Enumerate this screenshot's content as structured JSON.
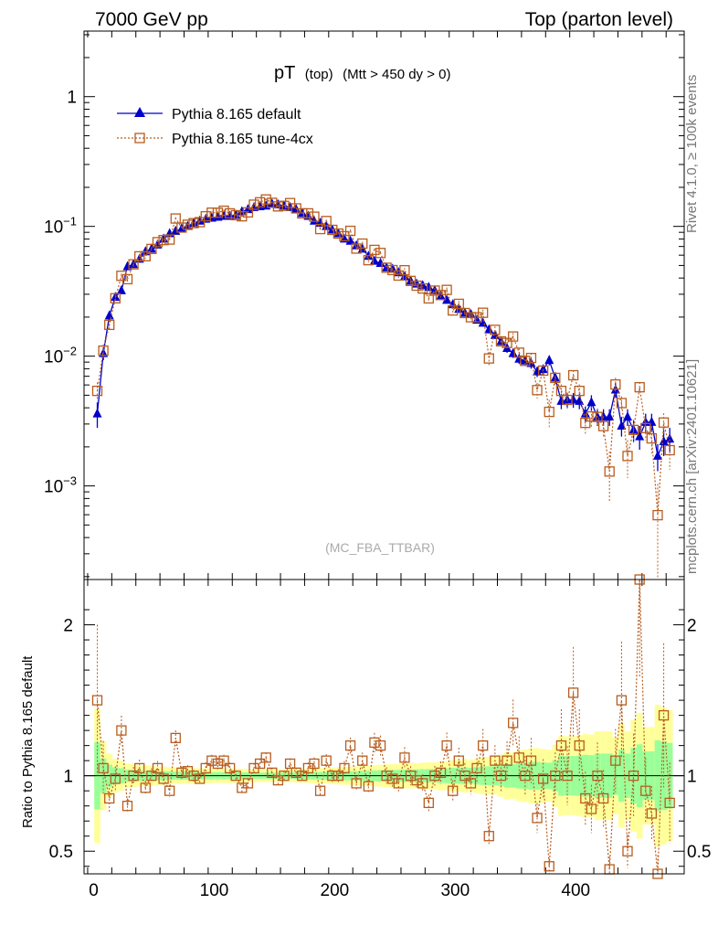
{
  "header": {
    "left": "7000 GeV pp",
    "right": "Top (parton level)"
  },
  "plot_title": {
    "main": "pT",
    "sub1": "(top)",
    "sub2": "(Mtt > 450 dy > 0)"
  },
  "analysis_tag": "(MC_FBA_TTBAR)",
  "side_labels": {
    "rivet": "Rivet 4.1.0, ≥ 100k events",
    "mcplots": "mcplots.cern.ch [arXiv:2401.10621]"
  },
  "legend": [
    {
      "label": "Pythia 8.165 default",
      "color": "#0000cc"
    },
    {
      "label": "Pythia 8.165 tune-4cx",
      "color": "#b85c1e"
    }
  ],
  "upper_ticks": [
    {
      "value": 1,
      "base": "1",
      "exp": ""
    },
    {
      "value": 0.1,
      "base": "10",
      "exp": "−1"
    },
    {
      "value": 0.01,
      "base": "10",
      "exp": "−2"
    },
    {
      "value": 0.001,
      "base": "10",
      "exp": "−3"
    }
  ],
  "ratio_ticks": [
    {
      "value": 2,
      "label": "2"
    },
    {
      "value": 1,
      "label": "1"
    },
    {
      "value": 0.5,
      "label": "0.5"
    }
  ],
  "x_ticks": [
    {
      "value": 0,
      "label": "0"
    },
    {
      "value": 100,
      "label": "100"
    },
    {
      "value": 200,
      "label": "200"
    },
    {
      "value": 300,
      "label": "300"
    },
    {
      "value": 400,
      "label": "400"
    }
  ],
  "ratio_ylabel": "Ratio to Pythia 8.165 default",
  "colors": {
    "default": "#0000cc",
    "tune": "#b85c1e",
    "band_inner": "#99ff99",
    "band_outer": "#ffff99"
  },
  "chart_data": {
    "type": "line",
    "title": "pT (top) (Mtt > 450 dy > 0)",
    "xlabel": "",
    "ylabel": "",
    "xlim": [
      -8,
      490
    ],
    "ylim": [
      0.00019,
      3.2
    ],
    "yscale": "log",
    "ratio_ylim": [
      0.35,
      2.3
    ],
    "x": [
      3,
      8,
      13,
      18,
      23,
      28,
      33,
      38,
      43,
      48,
      53,
      58,
      63,
      68,
      73,
      78,
      83,
      88,
      93,
      98,
      103,
      108,
      113,
      118,
      123,
      128,
      133,
      138,
      143,
      148,
      153,
      158,
      163,
      168,
      173,
      178,
      183,
      188,
      193,
      198,
      203,
      208,
      213,
      218,
      223,
      228,
      233,
      238,
      243,
      248,
      253,
      258,
      263,
      268,
      273,
      278,
      283,
      288,
      293,
      298,
      303,
      308,
      313,
      318,
      323,
      328,
      333,
      338,
      343,
      348,
      353,
      358,
      363,
      368,
      373,
      378,
      383,
      388,
      393,
      398,
      403,
      408,
      413,
      418,
      423,
      428,
      433,
      438,
      443,
      448,
      453,
      458,
      463,
      468,
      473,
      478
    ],
    "series": [
      {
        "name": "Pythia 8.165 default",
        "values": [
          0.0036,
          0.0105,
          0.0205,
          0.0285,
          0.032,
          0.049,
          0.051,
          0.056,
          0.064,
          0.067,
          0.072,
          0.08,
          0.088,
          0.092,
          0.096,
          0.1,
          0.106,
          0.11,
          0.114,
          0.116,
          0.118,
          0.12,
          0.12,
          0.122,
          0.13,
          0.135,
          0.14,
          0.142,
          0.144,
          0.149,
          0.147,
          0.144,
          0.14,
          0.135,
          0.126,
          0.12,
          0.11,
          0.106,
          0.1,
          0.094,
          0.088,
          0.08,
          0.077,
          0.071,
          0.067,
          0.059,
          0.054,
          0.052,
          0.048,
          0.047,
          0.044,
          0.041,
          0.038,
          0.036,
          0.035,
          0.034,
          0.032,
          0.029,
          0.027,
          0.025,
          0.023,
          0.0215,
          0.021,
          0.019,
          0.018,
          0.016,
          0.0145,
          0.013,
          0.0115,
          0.0105,
          0.0095,
          0.0092,
          0.0088,
          0.0076,
          0.0079,
          0.0093,
          0.0068,
          0.0045,
          0.0046,
          0.0046,
          0.0045,
          0.0036,
          0.0044,
          0.0034,
          0.0034,
          0.0034,
          0.0055,
          0.0029,
          0.0034,
          0.0027,
          0.0024,
          0.0031,
          0.0031,
          0.0017,
          0.0022,
          0.0023
        ],
        "errors": [
          0.0008,
          0.0012,
          0.0015,
          0.0016,
          0.0016,
          0.002,
          0.002,
          0.002,
          0.0022,
          0.0022,
          0.0022,
          0.0024,
          0.0025,
          0.0025,
          0.0026,
          0.0026,
          0.0027,
          0.0027,
          0.0028,
          0.0028,
          0.0028,
          0.0029,
          0.0029,
          0.0029,
          0.003,
          0.003,
          0.003,
          0.003,
          0.003,
          0.0031,
          0.0031,
          0.003,
          0.003,
          0.003,
          0.0029,
          0.0029,
          0.0028,
          0.0027,
          0.0026,
          0.0026,
          0.0025,
          0.0024,
          0.0023,
          0.0022,
          0.0022,
          0.002,
          0.0019,
          0.0019,
          0.0018,
          0.0018,
          0.0017,
          0.0017,
          0.0016,
          0.0015,
          0.0015,
          0.0015,
          0.0014,
          0.0014,
          0.0013,
          0.0013,
          0.0012,
          0.0012,
          0.0011,
          0.0011,
          0.0011,
          0.001,
          0.0009,
          0.0009,
          0.0009,
          0.0008,
          0.0008,
          0.0008,
          0.0008,
          0.0007,
          0.0007,
          0.0008,
          0.0007,
          0.0006,
          0.0006,
          0.0006,
          0.0006,
          0.0005,
          0.0006,
          0.0005,
          0.0005,
          0.0005,
          0.0007,
          0.0005,
          0.0005,
          0.0005,
          0.0005,
          0.0005,
          0.0005,
          0.0004,
          0.0005,
          0.0005
        ]
      },
      {
        "name": "Pythia 8.165 tune-4cx",
        "ratio": [
          1.5,
          1.05,
          0.85,
          0.98,
          1.3,
          0.8,
          1.0,
          1.05,
          0.92,
          1.0,
          1.05,
          0.98,
          0.9,
          1.25,
          1.02,
          1.03,
          1.0,
          0.98,
          1.05,
          1.1,
          1.08,
          1.1,
          1.05,
          1.0,
          0.92,
          0.95,
          1.05,
          1.08,
          1.12,
          1.02,
          0.97,
          1.0,
          1.08,
          1.02,
          1.0,
          1.05,
          1.08,
          0.9,
          1.1,
          1.0,
          1.0,
          1.05,
          1.2,
          0.95,
          1.1,
          0.93,
          1.22,
          1.2,
          1.0,
          0.98,
          0.95,
          1.12,
          1.0,
          0.97,
          0.95,
          0.82,
          1.0,
          1.02,
          1.2,
          0.9,
          1.1,
          1.0,
          0.95,
          1.05,
          1.2,
          0.6,
          1.1,
          1.0,
          1.1,
          1.35,
          1.12,
          1.0,
          1.1,
          0.72,
          0.98,
          0.4,
          1.0,
          1.2,
          1.0,
          1.55,
          1.2,
          0.85,
          0.78,
          1.0,
          0.85,
          0.38,
          1.1,
          1.5,
          0.5,
          1.0,
          2.4,
          0.9,
          0.75,
          0.35,
          1.4,
          0.82
        ]
      }
    ]
  }
}
